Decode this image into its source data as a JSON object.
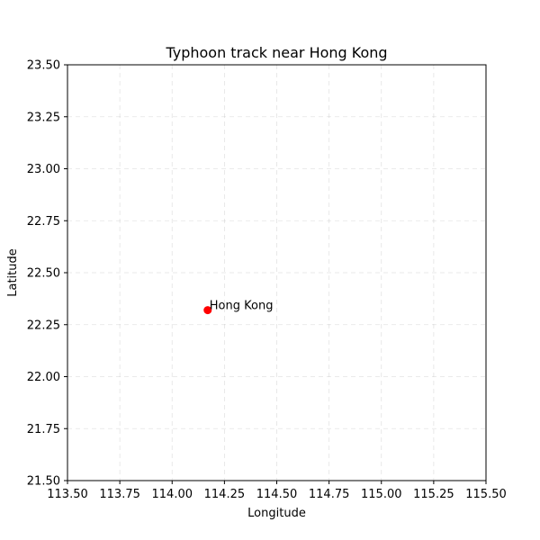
{
  "chart_data": {
    "type": "scatter",
    "title": "Typhoon track near Hong Kong",
    "xlabel": "Longitude",
    "ylabel": "Latitude",
    "xlim": [
      113.5,
      115.5
    ],
    "ylim": [
      21.5,
      23.5
    ],
    "xticks": [
      113.5,
      113.75,
      114.0,
      114.25,
      114.5,
      114.75,
      115.0,
      115.25,
      115.5
    ],
    "yticks": [
      21.5,
      21.75,
      22.0,
      22.25,
      22.5,
      22.75,
      23.0,
      23.25,
      23.5
    ],
    "xtick_labels": [
      "113.50",
      "113.75",
      "114.00",
      "114.25",
      "114.50",
      "114.75",
      "115.00",
      "115.25",
      "115.50"
    ],
    "ytick_labels": [
      "21.50",
      "21.75",
      "22.00",
      "22.25",
      "22.50",
      "22.75",
      "23.00",
      "23.25",
      "23.50"
    ],
    "grid": true,
    "points": [
      {
        "x": 114.17,
        "y": 22.32,
        "label": "Hong Kong",
        "color": "#ff0000"
      }
    ]
  }
}
